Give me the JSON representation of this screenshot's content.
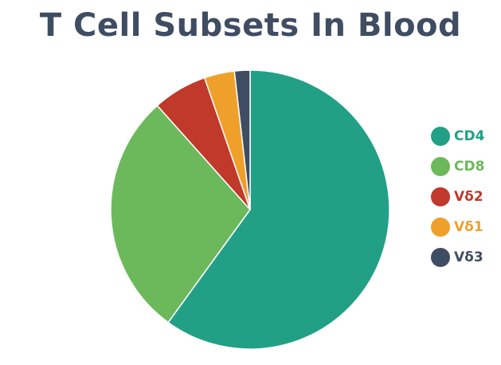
{
  "chart_data": {
    "type": "pie",
    "title": "T Cell Subsets In Blood",
    "slices": [
      {
        "label": "CD4",
        "value": 60.0,
        "color": "#21a086"
      },
      {
        "label": "CD8",
        "value": 28.4,
        "color": "#6cb95c"
      },
      {
        "label": "Vδ2",
        "value": 6.3,
        "color": "#c0392b"
      },
      {
        "label": "Vδ1",
        "value": 3.5,
        "color": "#efa02a"
      },
      {
        "label": "Vδ3",
        "value": 1.8,
        "color": "#3f4d63"
      }
    ],
    "start": "12 o'clock",
    "direction": "clockwise",
    "legend_position": "right"
  }
}
